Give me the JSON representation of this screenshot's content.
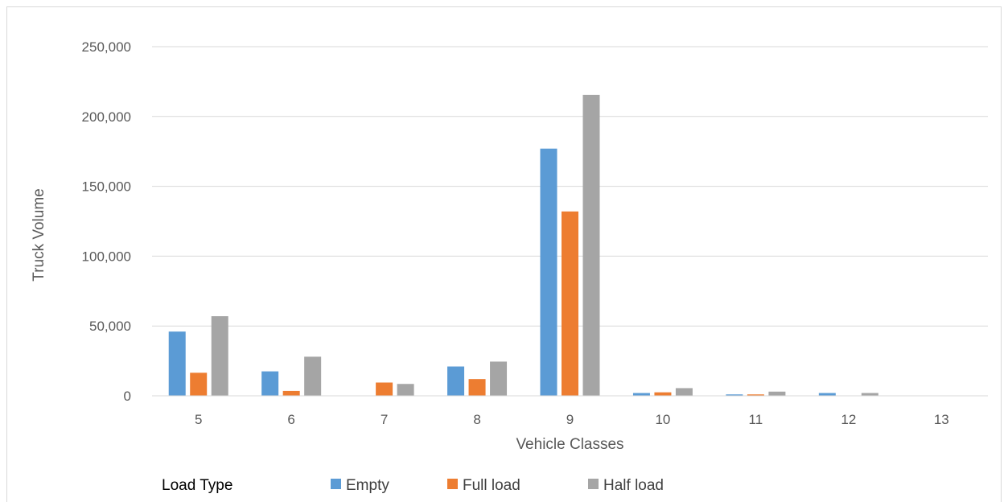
{
  "chart_data": {
    "type": "bar",
    "title": "",
    "xlabel": "Vehicle Classes",
    "ylabel": "Truck Volume",
    "ylim": [
      0,
      250000
    ],
    "yticks": [
      0,
      50000,
      100000,
      150000,
      200000,
      250000
    ],
    "ytick_labels": [
      "0",
      "50,000",
      "100,000",
      "150,000",
      "200,000",
      "250,000"
    ],
    "grid": true,
    "legend": {
      "title": "Load Type",
      "placement": "bottom"
    },
    "categories": [
      "5",
      "6",
      "7",
      "8",
      "9",
      "10",
      "11",
      "12",
      "13"
    ],
    "series": [
      {
        "name": "Empty",
        "color": "#5b9bd5",
        "values": [
          46000,
          17500,
          0,
          21000,
          177000,
          2000,
          1000,
          2000,
          0
        ]
      },
      {
        "name": "Full load",
        "color": "#ed7d31",
        "values": [
          16500,
          3500,
          9500,
          12000,
          132000,
          2500,
          1000,
          0,
          0
        ]
      },
      {
        "name": "Half load",
        "color": "#a5a5a5",
        "values": [
          57000,
          28000,
          8500,
          24500,
          215500,
          5500,
          3000,
          2000,
          0
        ]
      }
    ]
  }
}
